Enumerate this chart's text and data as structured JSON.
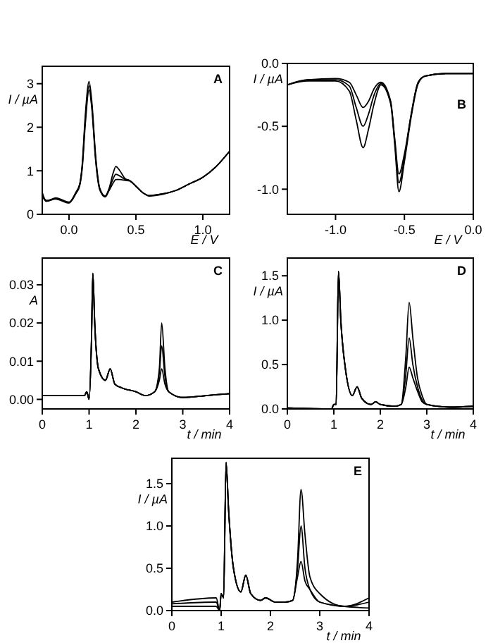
{
  "chart_data": [
    {
      "type": "line",
      "title": "A",
      "ylabel": "I / µA",
      "xlabel": "E / V",
      "xlim": [
        -0.2,
        1.2
      ],
      "ylim": [
        0,
        3.4
      ],
      "xticks": [
        {
          "value": 0,
          "label": "0.0"
        },
        0.5,
        {
          "value": 1,
          "label": "1.0"
        }
      ],
      "yticks": [
        0,
        1,
        2,
        3
      ],
      "x": [
        -0.2,
        -0.17,
        -0.1,
        0.0,
        0.05,
        0.08,
        0.1,
        0.12,
        0.15,
        0.17,
        0.2,
        0.23,
        0.27,
        0.3,
        0.33,
        0.35,
        0.38,
        0.42,
        0.45,
        0.5,
        0.55,
        0.6,
        0.7,
        0.8,
        0.9,
        1.0,
        1.1,
        1.2
      ],
      "series": [
        {
          "color": "#000000",
          "values": [
            0.5,
            0.3,
            0.38,
            0.28,
            0.5,
            0.7,
            1.2,
            2.2,
            3.05,
            2.6,
            1.3,
            0.6,
            0.42,
            0.6,
            0.95,
            1.1,
            1.0,
            0.82,
            0.78,
            0.65,
            0.5,
            0.43,
            0.47,
            0.55,
            0.7,
            0.85,
            1.1,
            1.45
          ]
        },
        {
          "color": "#000000",
          "values": [
            0.45,
            0.32,
            0.36,
            0.27,
            0.48,
            0.68,
            1.15,
            2.1,
            2.95,
            2.5,
            1.25,
            0.58,
            0.42,
            0.58,
            0.82,
            0.92,
            0.88,
            0.8,
            0.78,
            0.65,
            0.5,
            0.43,
            0.47,
            0.55,
            0.7,
            0.85,
            1.1,
            1.45
          ]
        },
        {
          "color": "#000000",
          "values": [
            0.42,
            0.3,
            0.35,
            0.26,
            0.47,
            0.66,
            1.1,
            2.0,
            2.85,
            2.45,
            1.2,
            0.56,
            0.4,
            0.55,
            0.72,
            0.8,
            0.8,
            0.78,
            0.77,
            0.64,
            0.5,
            0.42,
            0.46,
            0.55,
            0.7,
            0.85,
            1.1,
            1.45
          ]
        }
      ]
    },
    {
      "type": "line",
      "title": "B",
      "ylabel": "I / µA",
      "xlabel": "E / V",
      "xlim": [
        -1.35,
        0
      ],
      "ylim": [
        -1.2,
        0
      ],
      "xticks": [
        {
          "value": -1,
          "label": "-1.0"
        },
        -0.5,
        {
          "value": 0,
          "label": "0.0"
        }
      ],
      "yticks": [
        {
          "value": -1,
          "label": "-1.0"
        },
        -0.5,
        {
          "value": 0,
          "label": "0.0"
        }
      ],
      "x": [
        -1.35,
        -1.2,
        -1.0,
        -0.9,
        -0.85,
        -0.8,
        -0.76,
        -0.72,
        -0.67,
        -0.6,
        -0.57,
        -0.54,
        -0.5,
        -0.45,
        -0.4,
        -0.35,
        -0.2,
        0
      ],
      "series": [
        {
          "color": "#000000",
          "values": [
            -0.17,
            -0.13,
            -0.12,
            -0.15,
            -0.25,
            -0.35,
            -0.3,
            -0.2,
            -0.15,
            -0.3,
            -0.6,
            -0.88,
            -0.72,
            -0.4,
            -0.15,
            -0.1,
            -0.08,
            -0.08
          ]
        },
        {
          "color": "#000000",
          "values": [
            -0.17,
            -0.13,
            -0.13,
            -0.18,
            -0.35,
            -0.5,
            -0.4,
            -0.25,
            -0.16,
            -0.31,
            -0.62,
            -0.95,
            -0.75,
            -0.4,
            -0.15,
            -0.1,
            -0.08,
            -0.08
          ]
        },
        {
          "color": "#000000",
          "values": [
            -0.17,
            -0.14,
            -0.14,
            -0.22,
            -0.45,
            -0.67,
            -0.52,
            -0.32,
            -0.17,
            -0.32,
            -0.65,
            -1.02,
            -0.78,
            -0.42,
            -0.16,
            -0.1,
            -0.08,
            -0.08
          ]
        }
      ]
    },
    {
      "type": "line",
      "title": "C",
      "ylabel": "A",
      "xlabel": "t / min",
      "xlim": [
        0,
        4
      ],
      "ylim": [
        -0.0025,
        0.037
      ],
      "xticks": [
        0,
        1,
        2,
        3,
        4
      ],
      "yticks": [
        {
          "value": 0,
          "label": "0.00"
        },
        0.01,
        0.02,
        0.03
      ],
      "x": [
        0,
        0.9,
        0.95,
        1.0,
        1.05,
        1.08,
        1.12,
        1.2,
        1.35,
        1.45,
        1.55,
        1.7,
        2.0,
        2.2,
        2.4,
        2.5,
        2.55,
        2.62,
        2.7,
        3.0,
        3.5,
        4.0
      ],
      "series": [
        {
          "color": "#000000",
          "values": [
            0.001,
            0.001,
            0.002,
            0.0,
            0.015,
            0.033,
            0.02,
            0.008,
            0.005,
            0.008,
            0.004,
            0.003,
            0.002,
            0.001,
            0.002,
            0.008,
            0.02,
            0.008,
            0.002,
            0.0005,
            0.001,
            0.0015
          ]
        },
        {
          "color": "#000000",
          "values": [
            0.001,
            0.001,
            0.002,
            0.0,
            0.015,
            0.033,
            0.02,
            0.008,
            0.005,
            0.008,
            0.004,
            0.003,
            0.002,
            0.001,
            0.002,
            0.007,
            0.014,
            0.006,
            0.002,
            0.0005,
            0.001,
            0.0015
          ]
        },
        {
          "color": "#000000",
          "values": [
            0.001,
            0.001,
            0.002,
            0.0,
            0.015,
            0.033,
            0.02,
            0.008,
            0.005,
            0.008,
            0.004,
            0.003,
            0.002,
            0.001,
            0.002,
            0.005,
            0.008,
            0.004,
            0.002,
            0.0005,
            0.001,
            0.0015
          ]
        }
      ]
    },
    {
      "type": "line",
      "title": "D",
      "ylabel": "I / µA",
      "xlabel": "t / min",
      "xlim": [
        0,
        4
      ],
      "ylim": [
        0,
        1.7
      ],
      "xticks": [
        0,
        1,
        2,
        3,
        4
      ],
      "yticks": [
        {
          "value": 0,
          "label": "0.0"
        },
        0.5,
        {
          "value": 1,
          "label": "1.0"
        },
        1.5
      ],
      "x": [
        0,
        0.95,
        1.0,
        1.05,
        1.1,
        1.15,
        1.25,
        1.4,
        1.5,
        1.6,
        1.8,
        1.9,
        2.0,
        2.3,
        2.45,
        2.55,
        2.62,
        2.7,
        2.8,
        2.9,
        3.0,
        3.5,
        4.0
      ],
      "series": [
        {
          "color": "#000000",
          "values": [
            0.01,
            0.0,
            0.05,
            0.05,
            1.55,
            1.0,
            0.45,
            0.15,
            0.25,
            0.12,
            0.05,
            0.08,
            0.05,
            0.03,
            0.05,
            0.6,
            1.2,
            0.8,
            0.35,
            0.15,
            0.05,
            0.02,
            0.03
          ]
        },
        {
          "color": "#000000",
          "values": [
            0.01,
            0.0,
            0.05,
            0.05,
            1.55,
            1.0,
            0.45,
            0.15,
            0.25,
            0.12,
            0.05,
            0.08,
            0.05,
            0.03,
            0.05,
            0.4,
            0.8,
            0.5,
            0.25,
            0.1,
            0.05,
            0.02,
            0.03
          ]
        },
        {
          "color": "#000000",
          "values": [
            0.01,
            0.0,
            0.05,
            0.05,
            1.55,
            1.0,
            0.45,
            0.15,
            0.25,
            0.12,
            0.05,
            0.08,
            0.05,
            0.03,
            0.05,
            0.25,
            0.47,
            0.35,
            0.2,
            0.08,
            0.05,
            0.02,
            0.03
          ]
        }
      ]
    },
    {
      "type": "line",
      "title": "E",
      "ylabel": "I / µA",
      "xlabel": "t / min",
      "xlim": [
        0,
        4
      ],
      "ylim": [
        0,
        1.8
      ],
      "xticks": [
        0,
        1,
        2,
        3,
        4
      ],
      "yticks": [
        {
          "value": 0,
          "label": "0.0"
        },
        0.5,
        {
          "value": 1,
          "label": "1.0"
        },
        1.5
      ],
      "x": [
        0,
        0.9,
        0.97,
        1.0,
        1.05,
        1.1,
        1.15,
        1.25,
        1.4,
        1.5,
        1.6,
        1.8,
        1.9,
        2.1,
        2.3,
        2.45,
        2.55,
        2.62,
        2.7,
        2.8,
        3.0,
        3.5,
        4.0
      ],
      "series": [
        {
          "color": "#000000",
          "values": [
            0.1,
            0.15,
            0.0,
            0.2,
            0.15,
            1.75,
            1.2,
            0.5,
            0.22,
            0.42,
            0.2,
            0.12,
            0.15,
            0.1,
            0.1,
            0.12,
            0.6,
            1.43,
            0.9,
            0.4,
            0.2,
            0.05,
            0.15
          ]
        },
        {
          "color": "#000000",
          "values": [
            0.08,
            0.1,
            0.0,
            0.2,
            0.15,
            1.75,
            1.2,
            0.5,
            0.22,
            0.42,
            0.2,
            0.12,
            0.15,
            0.1,
            0.1,
            0.12,
            0.5,
            1.0,
            0.5,
            0.25,
            0.1,
            0.05,
            0.1
          ]
        },
        {
          "color": "#000000",
          "values": [
            0.05,
            0.05,
            0.0,
            0.2,
            0.15,
            1.75,
            1.2,
            0.5,
            0.22,
            0.42,
            0.2,
            0.12,
            0.15,
            0.1,
            0.1,
            0.12,
            0.4,
            0.58,
            0.35,
            0.25,
            0.1,
            0.05,
            0.03
          ]
        }
      ]
    }
  ]
}
